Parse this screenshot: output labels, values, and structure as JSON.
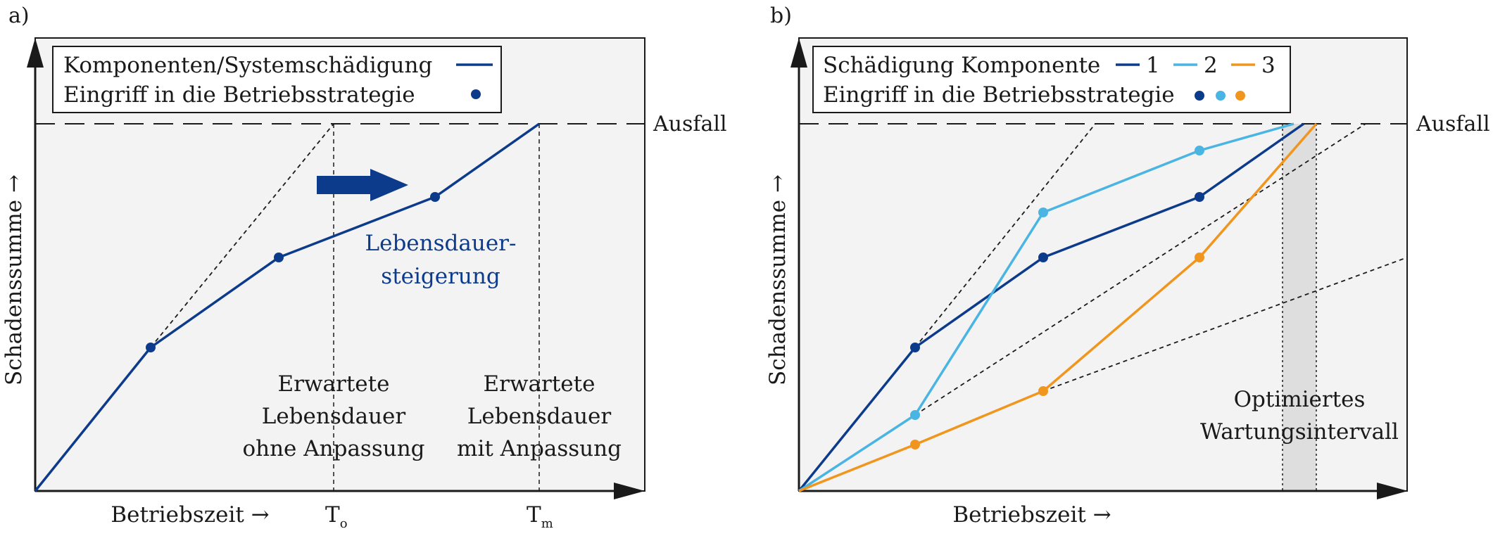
{
  "panel_a": {
    "label": "a)",
    "ylabel": "Schadenssumme →",
    "xlabel": "Betriebszeit →",
    "legend": {
      "line_label": "Komponenten/Systemschädigung",
      "marker_label": "Eingriff in die Betriebsstrategie"
    },
    "failure_label": "Ausfall",
    "arrow_text_line1": "Lebensdauer-",
    "arrow_text_line2": "steigerung",
    "expected_without": [
      "Erwartete",
      "Lebensdauer",
      "ohne Anpassung"
    ],
    "expected_with": [
      "Erwartete",
      "Lebensdauer",
      "mit Anpassung"
    ],
    "tick_o": "T",
    "tick_o_sub": "o",
    "tick_m": "T",
    "tick_m_sub": "m"
  },
  "panel_b": {
    "label": "b)",
    "ylabel": "Schadenssumme →",
    "xlabel": "Betriebszeit →",
    "legend": {
      "line_label": "Schädigung Komponente",
      "marker_label": "Eingriff in die Betriebsstrategie",
      "series_labels": [
        "1",
        "2",
        "3"
      ]
    },
    "failure_label": "Ausfall",
    "interval_line1": "Optimiertes",
    "interval_line2": "Wartungsintervall"
  },
  "colors": {
    "dark_blue": "#0d3b8c",
    "light_blue": "#4ab4e2",
    "orange": "#f0961e",
    "plot_bg": "#f3f3f3",
    "axis": "#1a1a1a",
    "arrow": "#0d3b8c"
  }
}
